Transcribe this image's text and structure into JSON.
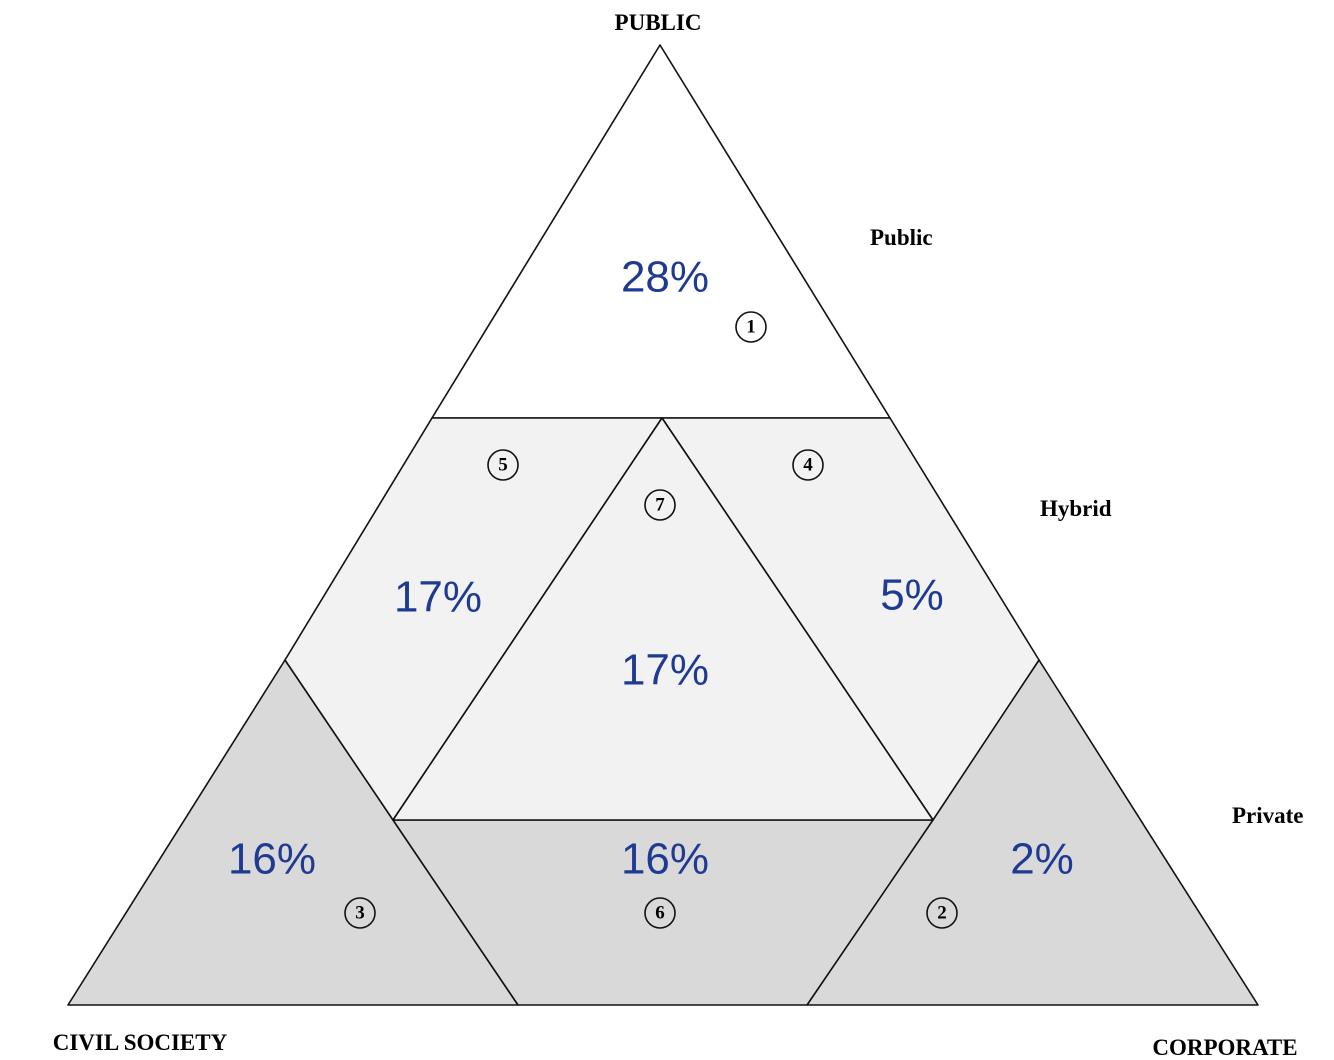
{
  "vertices": {
    "top": "PUBLIC",
    "left": "CIVIL SOCIETY",
    "right": "CORPORATE"
  },
  "levels": [
    "Public",
    "Hybrid",
    "Private"
  ],
  "regions": [
    {
      "number": "1",
      "share": "28%"
    },
    {
      "number": "2",
      "share": "2%"
    },
    {
      "number": "3",
      "share": "16%"
    },
    {
      "number": "4",
      "share": "5%"
    },
    {
      "number": "5",
      "share": "17%"
    },
    {
      "number": "6",
      "share": "16%"
    },
    {
      "number": "7",
      "share": "17%"
    }
  ]
}
